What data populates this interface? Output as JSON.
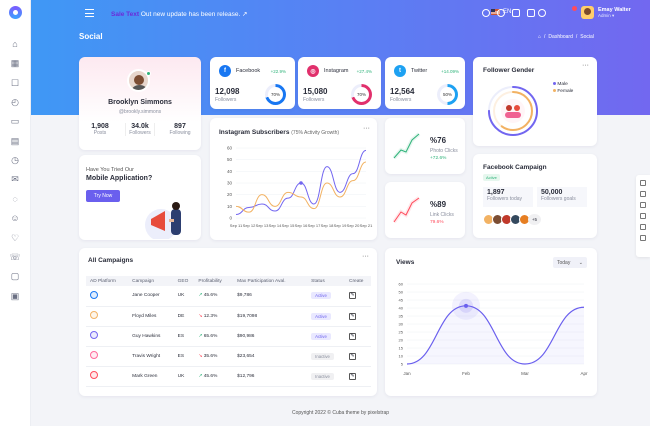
{
  "header": {
    "notice_highlight": "Sale Text",
    "notice": "Out new update has been release. ↗",
    "lang": "EN",
    "user": {
      "name": "Emay Walter",
      "role": "Admin ▾"
    }
  },
  "page": {
    "title": "Social",
    "breadcrumb": [
      "Dashboard",
      "/",
      "Social"
    ]
  },
  "profile": {
    "name": "Brooklyn Simmons",
    "handle": "@brookly.simmons",
    "stats": [
      {
        "value": "1,908",
        "label": "Posts"
      },
      {
        "value": "34.0k",
        "label": "Followers"
      },
      {
        "value": "897",
        "label": "Following"
      }
    ]
  },
  "social_cards": [
    {
      "name": "Facebook",
      "growth": "+22.9%",
      "value": "12,098",
      "label": "Followers",
      "percent": "70%",
      "color": "#1877f2",
      "ring": 0.7
    },
    {
      "name": "Instagram",
      "growth": "+27.4%",
      "value": "15,080",
      "label": "Followers",
      "percent": "70%",
      "color": "#e1306c",
      "ring": 0.7
    },
    {
      "name": "Twitter",
      "growth": "+14.09%",
      "value": "12,564",
      "label": "Followers",
      "percent": "50%",
      "color": "#1da1f2",
      "ring": 0.5
    }
  ],
  "instagram": {
    "title": "Instagram Subscribers",
    "subtitle": "(75% Activity Growth)",
    "chart_data": {
      "type": "line",
      "categories": [
        "Sep 11",
        "Sep 12",
        "Sep 13",
        "Sep 14",
        "Sep 15",
        "Sep 16",
        "Sep 17",
        "Sep 18",
        "Sep 19",
        "Sep 20",
        "Sep 21"
      ],
      "ylim": [
        0,
        60
      ],
      "yticks": [
        "0",
        "10",
        "20",
        "30",
        "40",
        "50",
        "60"
      ],
      "series": [
        {
          "values": [
            3,
            9,
            12,
            6,
            17,
            30,
            12,
            44,
            22,
            38,
            58
          ],
          "color": "#7266f0"
        },
        {
          "values": [
            10,
            5,
            20,
            10,
            22,
            18,
            8,
            30,
            18,
            32,
            48
          ],
          "color": "#f2b263"
        }
      ]
    }
  },
  "photo_clicks": {
    "value": "%76",
    "label": "Photo Clicks",
    "change": "+72.6%",
    "color": "#2fb37a"
  },
  "link_clicks": {
    "value": "%89",
    "label": "Link Clicks",
    "change": "79.6%",
    "color": "#ff4b5c"
  },
  "follower_gender": {
    "title": "Follower Gender",
    "legend": [
      "Male",
      "Female"
    ],
    "male": 0.75,
    "female": 0.6
  },
  "facebook_campaign": {
    "title": "Facebook Campaign",
    "status": "Active",
    "stats": [
      {
        "value": "1,897",
        "label": "Followers today"
      },
      {
        "value": "50,000",
        "label": "Followers goals"
      }
    ],
    "more": "+5"
  },
  "app_promo": {
    "line1": "Have You Tried Our",
    "line2": "Mobile Application?",
    "button": "Try Now"
  },
  "campaigns": {
    "title": "All Campaigns",
    "columns": [
      "AD Platform",
      "Campaign",
      "GEO",
      "Profitability",
      "Max Participation Aval.",
      "Status",
      "Create"
    ],
    "rows": [
      {
        "platform": "facebook",
        "color": "#1877f2",
        "campaign": "Jane Cooper",
        "geo": "UK",
        "profit": "45.6%",
        "trend": "up",
        "max": "$9,786",
        "status": "Active"
      },
      {
        "platform": "instagram",
        "color": "#f2b263",
        "campaign": "Floyd Miles",
        "geo": "DE",
        "profit": "12.3%",
        "trend": "dn",
        "max": "$19,7098",
        "status": "Active"
      },
      {
        "platform": "pinterest",
        "color": "#7266f0",
        "campaign": "Guy Hawkins",
        "geo": "ES",
        "profit": "65.6%",
        "trend": "up",
        "max": "$90,986",
        "status": "Active"
      },
      {
        "platform": "twitter",
        "color": "#ff6b9a",
        "campaign": "Travis Wright",
        "geo": "ES",
        "profit": "35.6%",
        "trend": "dn",
        "max": "$23,654",
        "status": "Inactive"
      },
      {
        "platform": "youtube",
        "color": "#ff4b5c",
        "campaign": "Mark Green",
        "geo": "UK",
        "profit": "45.6%",
        "trend": "up",
        "max": "$12,796",
        "status": "Inactive"
      }
    ]
  },
  "views": {
    "title": "Views",
    "select": "Today",
    "chart_data": {
      "type": "line",
      "categories": [
        "Jan",
        "Feb",
        "Mar",
        "Apr"
      ],
      "ylim": [
        5,
        60
      ],
      "yticks": [
        "5",
        "10",
        "15",
        "20",
        "25",
        "30",
        "35",
        "40",
        "45",
        "50",
        "60"
      ],
      "series": [
        {
          "values": [
            5,
            45,
            5,
            44
          ],
          "color": "#6a5fee"
        }
      ]
    }
  },
  "footer": "Copyright 2022 © Cuba theme by pixelstrap"
}
